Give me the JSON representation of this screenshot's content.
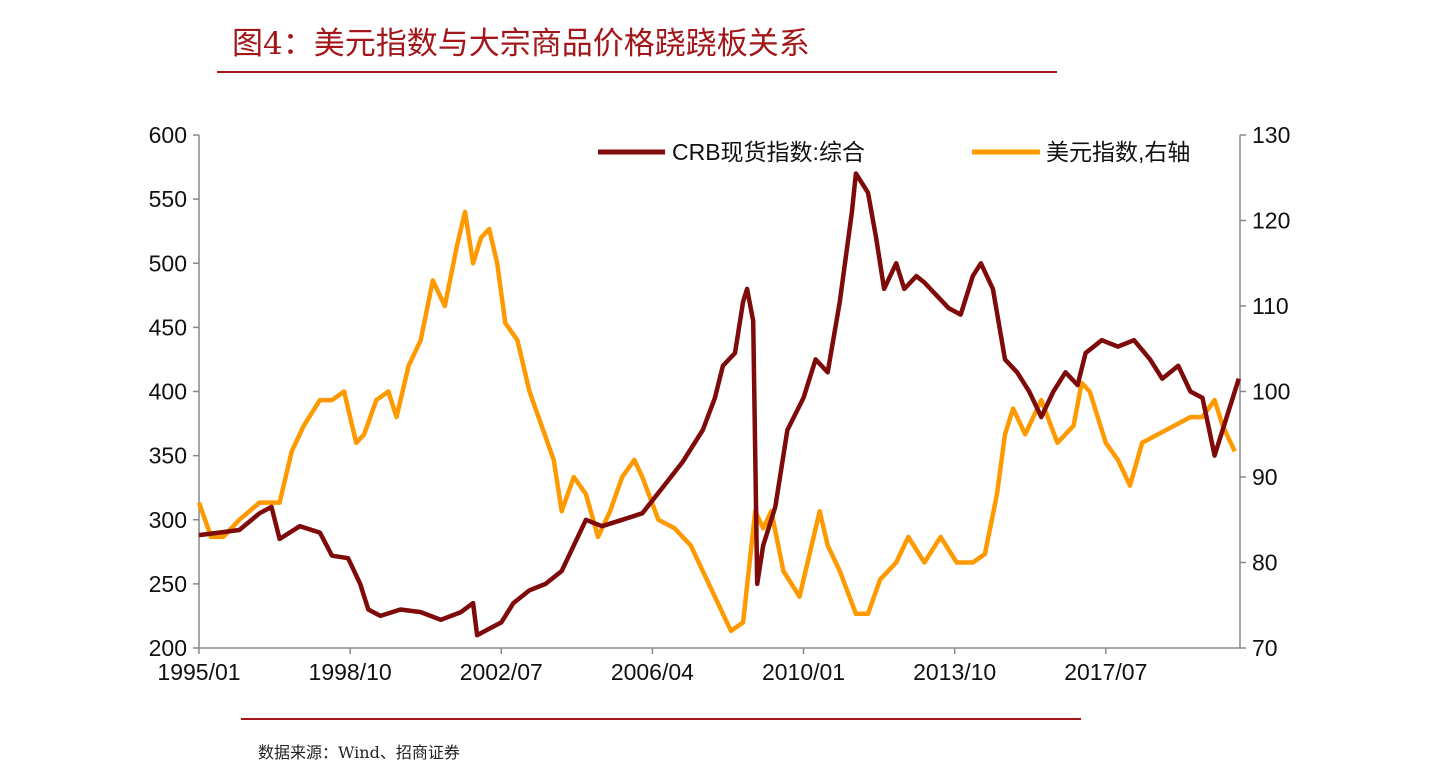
{
  "title": "图4：美元指数与大宗商品价格跷跷板关系",
  "source": "数据来源：Wind、招商证券",
  "colors": {
    "crb": "#7f0a0a",
    "usd": "#ff9900",
    "accent": "#a3171b"
  },
  "chart_data": {
    "type": "line",
    "title": "图4：美元指数与大宗商品价格跷跷板关系",
    "x_ticks": [
      "1995/01",
      "1998/10",
      "2002/07",
      "2006/04",
      "2010/01",
      "2013/10",
      "2017/07"
    ],
    "x_tick_values": [
      1995.0,
      1998.75,
      2002.5,
      2006.25,
      2010.0,
      2013.75,
      2017.5
    ],
    "xlim": [
      1995.0,
      2020.83
    ],
    "y_left": {
      "ylim": [
        200,
        600
      ],
      "ticks": [
        "200",
        "250",
        "300",
        "350",
        "400",
        "450",
        "500",
        "550",
        "600"
      ]
    },
    "y_right": {
      "ylim": [
        70,
        130
      ],
      "ticks": [
        "70",
        "80",
        "90",
        "100",
        "110",
        "120",
        "130"
      ]
    },
    "legend_position": "top-right",
    "series": [
      {
        "name": "CRB现货指数:综合",
        "axis": "left",
        "x": [
          1995.0,
          1995.5,
          1996.0,
          1996.5,
          1996.8,
          1997.0,
          1997.5,
          1998.0,
          1998.3,
          1998.7,
          1999.0,
          1999.2,
          1999.5,
          2000.0,
          2000.5,
          2001.0,
          2001.5,
          2001.8,
          2001.9,
          2002.2,
          2002.5,
          2002.8,
          2003.2,
          2003.6,
          2004.0,
          2004.3,
          2004.6,
          2005.0,
          2005.5,
          2006.0,
          2006.5,
          2007.0,
          2007.5,
          2007.8,
          2008.0,
          2008.3,
          2008.5,
          2008.6,
          2008.75,
          2008.85,
          2009.0,
          2009.3,
          2009.6,
          2010.0,
          2010.3,
          2010.6,
          2010.9,
          2011.2,
          2011.3,
          2011.6,
          2011.8,
          2012.0,
          2012.3,
          2012.5,
          2012.8,
          2013.0,
          2013.3,
          2013.6,
          2013.9,
          2014.2,
          2014.4,
          2014.7,
          2015.0,
          2015.3,
          2015.6,
          2015.9,
          2016.2,
          2016.5,
          2016.8,
          2017.0,
          2017.4,
          2017.8,
          2018.2,
          2018.6,
          2018.9,
          2019.3,
          2019.6,
          2019.9,
          2020.2,
          2020.5,
          2020.8
        ],
        "values": [
          288,
          290,
          292,
          305,
          310,
          285,
          295,
          290,
          272,
          270,
          250,
          230,
          225,
          230,
          228,
          222,
          228,
          235,
          210,
          215,
          220,
          235,
          245,
          250,
          260,
          280,
          300,
          295,
          300,
          305,
          325,
          345,
          370,
          395,
          420,
          430,
          470,
          480,
          455,
          250,
          280,
          310,
          370,
          395,
          425,
          415,
          470,
          540,
          570,
          555,
          520,
          480,
          500,
          480,
          490,
          485,
          475,
          465,
          460,
          490,
          500,
          480,
          425,
          415,
          400,
          380,
          400,
          415,
          405,
          430,
          440,
          435,
          440,
          425,
          410,
          420,
          400,
          395,
          350,
          380,
          410
        ]
      },
      {
        "name": "美元指数,右轴",
        "axis": "right",
        "x": [
          1995.0,
          1995.3,
          1995.6,
          1996.0,
          1996.5,
          1997.0,
          1997.3,
          1997.6,
          1998.0,
          1998.3,
          1998.6,
          1998.9,
          1999.1,
          1999.4,
          1999.7,
          1999.9,
          2000.2,
          2000.5,
          2000.8,
          2001.1,
          2001.4,
          2001.6,
          2001.8,
          2002.0,
          2002.2,
          2002.4,
          2002.6,
          2002.9,
          2003.2,
          2003.5,
          2003.8,
          2004.0,
          2004.3,
          2004.6,
          2004.9,
          2005.2,
          2005.5,
          2005.8,
          2006.0,
          2006.4,
          2006.8,
          2007.2,
          2007.6,
          2007.9,
          2008.2,
          2008.5,
          2008.8,
          2009.0,
          2009.2,
          2009.5,
          2009.9,
          2010.4,
          2010.6,
          2010.9,
          2011.3,
          2011.6,
          2011.9,
          2012.3,
          2012.6,
          2013.0,
          2013.4,
          2013.8,
          2014.2,
          2014.5,
          2014.8,
          2015.0,
          2015.2,
          2015.5,
          2015.9,
          2016.3,
          2016.7,
          2016.9,
          2017.1,
          2017.5,
          2017.8,
          2018.1,
          2018.4,
          2018.8,
          2019.2,
          2019.6,
          2019.9,
          2020.2,
          2020.4,
          2020.7
        ],
        "values": [
          87,
          83,
          83,
          85,
          87,
          87,
          93,
          96,
          99,
          99,
          100,
          94,
          95,
          99,
          100,
          97,
          103,
          106,
          113,
          110,
          117,
          121,
          115,
          118,
          119,
          115,
          108,
          106,
          100,
          96,
          92,
          86,
          90,
          88,
          83,
          86,
          90,
          92,
          90,
          85,
          84,
          82,
          78,
          75,
          72,
          73,
          86,
          84,
          86,
          79,
          76,
          86,
          82,
          79,
          74,
          74,
          78,
          80,
          83,
          80,
          83,
          80,
          80,
          81,
          88,
          95,
          98,
          95,
          99,
          94,
          96,
          101,
          100,
          94,
          92,
          89,
          94,
          95,
          96,
          97,
          97,
          99,
          96,
          93
        ]
      }
    ]
  }
}
